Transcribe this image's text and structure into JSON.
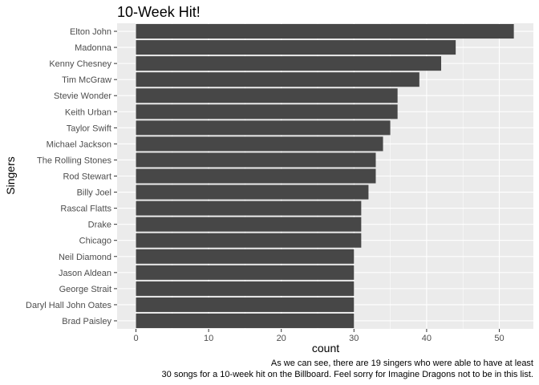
{
  "chart_data": {
    "type": "bar",
    "orientation": "horizontal",
    "title": "10-Week Hit!",
    "xlabel": "count",
    "ylabel": "Singers",
    "caption_lines": [
      "As we can see, there are 19 singers who were able to have at least",
      "30 songs for a 10-week hit on the Billboard. Feel sorry for Imagine Dragons not to be in this list."
    ],
    "categories": [
      "Elton John",
      "Madonna",
      "Kenny Chesney",
      "Tim McGraw",
      "Stevie Wonder",
      "Keith Urban",
      "Taylor Swift",
      "Michael Jackson",
      "The Rolling Stones",
      "Rod Stewart",
      "Billy Joel",
      "Rascal Flatts",
      "Drake",
      "Chicago",
      "Neil Diamond",
      "Jason Aldean",
      "George Strait",
      "Daryl Hall John Oates",
      "Brad Paisley"
    ],
    "values": [
      52,
      44,
      42,
      39,
      36,
      36,
      35,
      34,
      33,
      33,
      32,
      31,
      31,
      31,
      30,
      30,
      30,
      30,
      30
    ],
    "xlim": [
      0,
      54.6
    ],
    "xticks": [
      0,
      10,
      20,
      30,
      40,
      50
    ],
    "grid": true,
    "colors": {
      "bar": "#474747",
      "panel": "#ebebeb",
      "grid": "#ffffff"
    }
  }
}
